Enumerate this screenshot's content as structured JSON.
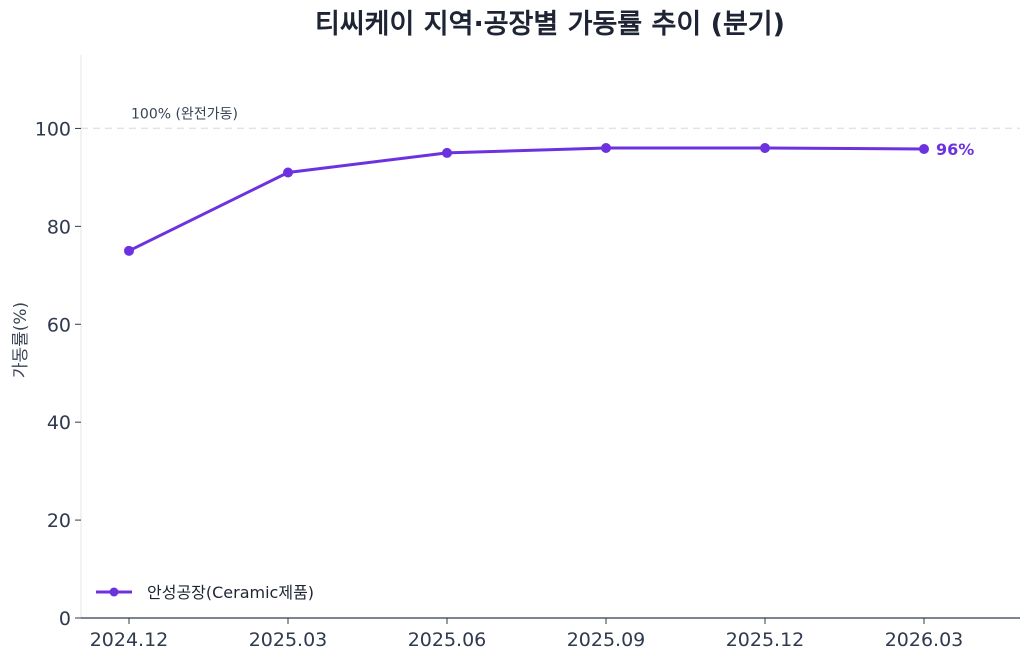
{
  "chart_data": {
    "type": "line",
    "title": "티씨케이 지역·공장별 가동률 추이 (분기)",
    "xlabel": "",
    "ylabel": "가동률(%)",
    "categories": [
      "2024.12",
      "2025.03",
      "2025.06",
      "2025.09",
      "2025.12",
      "2026.03"
    ],
    "ylim": [
      0,
      115
    ],
    "yticks": [
      "0",
      "20",
      "40",
      "60",
      "80",
      "100"
    ],
    "series": [
      {
        "name": "안성공장(Ceramic제품)",
        "values": [
          75,
          91,
          95,
          96,
          96,
          95.8
        ],
        "color": "#6d32e0"
      }
    ],
    "reference_line": {
      "value": 100,
      "label": "100% (완전가동)",
      "color": "#d8dce3"
    },
    "end_label": "96%",
    "grid": false,
    "legend_position": "bottom-left"
  }
}
